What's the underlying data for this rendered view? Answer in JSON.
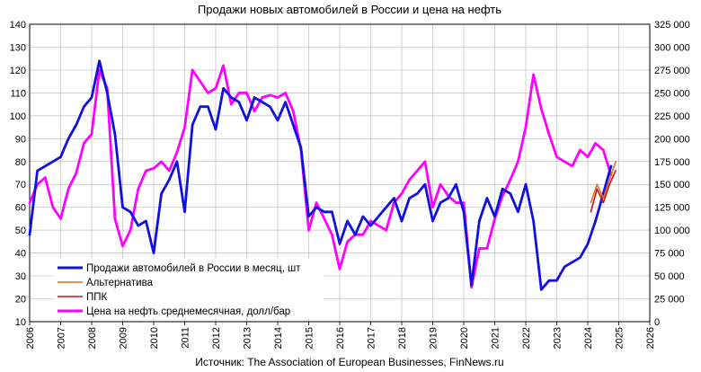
{
  "chart_data": {
    "type": "line",
    "title": "Продажи новых автомобилей в России и цена на нефть",
    "source": "Источник: The Association of European Businesses, FinNews.ru",
    "grid": true,
    "legend_position": "bottom-left",
    "x_axis": {
      "min": 2006,
      "max": 2026,
      "ticks": [
        "2006",
        "2007",
        "2008",
        "2009",
        "2010",
        "2011",
        "2012",
        "2013",
        "2014",
        "2015",
        "2016",
        "2017",
        "2018",
        "2019",
        "2020",
        "2021",
        "2022",
        "2023",
        "2024",
        "2025",
        "2026"
      ]
    },
    "y_left": {
      "min": 10,
      "max": 140,
      "ticks": [
        "10",
        "20",
        "30",
        "40",
        "50",
        "60",
        "70",
        "80",
        "90",
        "100",
        "110",
        "120",
        "130",
        "140"
      ]
    },
    "y_right": {
      "min": 0,
      "max": 325000,
      "ticks": [
        "0",
        "25 000",
        "50 000",
        "75 000",
        "100 000",
        "125 000",
        "150 000",
        "175 000",
        "200 000",
        "225 000",
        "250 000",
        "275 000",
        "300 000",
        "325 000"
      ]
    },
    "series": [
      {
        "name": "Продажи автомобилей в России в месяц, шт",
        "axis": "right",
        "color": "#1010e0",
        "x": [
          2006.0,
          2006.25,
          2006.5,
          2006.75,
          2007.0,
          2007.25,
          2007.5,
          2007.75,
          2008.0,
          2008.25,
          2008.5,
          2008.75,
          2009.0,
          2009.25,
          2009.5,
          2009.75,
          2010.0,
          2010.25,
          2010.5,
          2010.75,
          2011.0,
          2011.25,
          2011.5,
          2011.75,
          2012.0,
          2012.25,
          2012.5,
          2012.75,
          2013.0,
          2013.25,
          2013.5,
          2013.75,
          2014.0,
          2014.25,
          2014.5,
          2014.75,
          2015.0,
          2015.25,
          2015.5,
          2015.75,
          2016.0,
          2016.25,
          2016.5,
          2016.75,
          2017.0,
          2017.25,
          2017.5,
          2017.75,
          2018.0,
          2018.25,
          2018.5,
          2018.75,
          2019.0,
          2019.25,
          2019.5,
          2019.75,
          2020.0,
          2020.25,
          2020.5,
          2020.75,
          2021.0,
          2021.25,
          2021.5,
          2021.75,
          2022.0,
          2022.25,
          2022.5,
          2022.75,
          2023.0,
          2023.25,
          2023.5,
          2023.75,
          2024.0,
          2024.25,
          2024.5,
          2024.75
        ],
        "values": [
          95000,
          165000,
          170000,
          175000,
          180000,
          200000,
          215000,
          235000,
          245000,
          285000,
          250000,
          205000,
          125000,
          120000,
          105000,
          110000,
          75000,
          140000,
          155000,
          175000,
          120000,
          215000,
          235000,
          235000,
          210000,
          255000,
          245000,
          240000,
          220000,
          245000,
          240000,
          235000,
          220000,
          240000,
          215000,
          190000,
          115000,
          125000,
          120000,
          120000,
          85000,
          110000,
          95000,
          115000,
          105000,
          115000,
          125000,
          135000,
          110000,
          135000,
          140000,
          150000,
          110000,
          130000,
          135000,
          150000,
          120000,
          40000,
          110000,
          135000,
          115000,
          145000,
          140000,
          120000,
          150000,
          110000,
          35000,
          45000,
          45000,
          60000,
          65000,
          70000,
          85000,
          110000,
          140000,
          170000
        ]
      },
      {
        "name": "Альтернатива",
        "axis": "right",
        "color": "#e07020",
        "x": [
          2024.1,
          2024.3,
          2024.5,
          2024.7,
          2024.9
        ],
        "values": [
          130000,
          150000,
          135000,
          155000,
          175000
        ]
      },
      {
        "name": "ППК",
        "axis": "right",
        "color": "#d01010",
        "x": [
          2024.1,
          2024.3,
          2024.5,
          2024.7,
          2024.9
        ],
        "values": [
          120000,
          145000,
          130000,
          150000,
          165000
        ]
      },
      {
        "name": "Цена на нефть среднемесячная, долл/бар",
        "axis": "left",
        "color": "#ff00ff",
        "x": [
          2006.0,
          2006.25,
          2006.5,
          2006.75,
          2007.0,
          2007.25,
          2007.5,
          2007.75,
          2008.0,
          2008.25,
          2008.5,
          2008.75,
          2009.0,
          2009.25,
          2009.5,
          2009.75,
          2010.0,
          2010.25,
          2010.5,
          2010.75,
          2011.0,
          2011.25,
          2011.5,
          2011.75,
          2012.0,
          2012.25,
          2012.5,
          2012.75,
          2013.0,
          2013.25,
          2013.5,
          2013.75,
          2014.0,
          2014.25,
          2014.5,
          2014.75,
          2015.0,
          2015.25,
          2015.5,
          2015.75,
          2016.0,
          2016.25,
          2016.5,
          2016.75,
          2017.0,
          2017.25,
          2017.5,
          2017.75,
          2018.0,
          2018.25,
          2018.5,
          2018.75,
          2019.0,
          2019.25,
          2019.5,
          2019.75,
          2020.0,
          2020.25,
          2020.5,
          2020.75,
          2021.0,
          2021.25,
          2021.5,
          2021.75,
          2022.0,
          2022.25,
          2022.5,
          2022.75,
          2023.0,
          2023.25,
          2023.5,
          2023.75,
          2024.0,
          2024.25,
          2024.5,
          2024.75
        ],
        "values": [
          62,
          70,
          73,
          60,
          55,
          68,
          75,
          88,
          92,
          120,
          112,
          55,
          43,
          50,
          68,
          76,
          77,
          80,
          76,
          84,
          95,
          120,
          115,
          110,
          112,
          122,
          105,
          110,
          110,
          102,
          108,
          109,
          108,
          110,
          102,
          85,
          50,
          62,
          55,
          48,
          33,
          45,
          48,
          48,
          54,
          52,
          50,
          62,
          66,
          72,
          76,
          80,
          60,
          70,
          65,
          62,
          62,
          25,
          42,
          42,
          55,
          65,
          72,
          80,
          95,
          118,
          103,
          92,
          82,
          80,
          78,
          85,
          82,
          88,
          85,
          74
        ]
      }
    ]
  }
}
